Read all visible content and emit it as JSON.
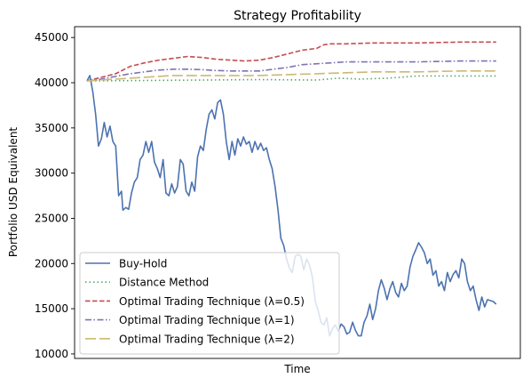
{
  "chart_data": {
    "type": "line",
    "title": "Strategy Profitability",
    "xlabel": "Time",
    "ylabel": "Portfolio USD Equivalent",
    "xlim": [
      0,
      300
    ],
    "ylim": [
      9500,
      46200
    ],
    "yticks": [
      10000,
      15000,
      20000,
      25000,
      30000,
      35000,
      40000,
      45000
    ],
    "ytick_labels": [
      "10000",
      "15000",
      "20000",
      "25000",
      "30000",
      "35000",
      "40000",
      "45000"
    ],
    "x_tick_labels_visible": false,
    "grid": false,
    "legend_position": "lower-left",
    "series": [
      {
        "name": "Buy-Hold",
        "color": "#4c72b0",
        "style": "solid",
        "points": [
          [
            0,
            40200
          ],
          [
            2,
            40800
          ],
          [
            4,
            39000
          ],
          [
            6,
            36500
          ],
          [
            8,
            33000
          ],
          [
            10,
            33800
          ],
          [
            12,
            35600
          ],
          [
            14,
            34000
          ],
          [
            16,
            35200
          ],
          [
            18,
            33500
          ],
          [
            20,
            33000
          ],
          [
            22,
            27500
          ],
          [
            24,
            28000
          ],
          [
            25,
            25900
          ],
          [
            27,
            26200
          ],
          [
            29,
            26000
          ],
          [
            31,
            27800
          ],
          [
            33,
            29000
          ],
          [
            35,
            29500
          ],
          [
            37,
            31500
          ],
          [
            39,
            32000
          ],
          [
            41,
            33500
          ],
          [
            43,
            32300
          ],
          [
            45,
            33500
          ],
          [
            47,
            31200
          ],
          [
            49,
            30500
          ],
          [
            51,
            29500
          ],
          [
            53,
            31500
          ],
          [
            55,
            27800
          ],
          [
            57,
            27500
          ],
          [
            59,
            28800
          ],
          [
            61,
            27800
          ],
          [
            63,
            28500
          ],
          [
            65,
            31500
          ],
          [
            67,
            31000
          ],
          [
            69,
            28000
          ],
          [
            71,
            27500
          ],
          [
            73,
            29000
          ],
          [
            75,
            28000
          ],
          [
            77,
            31800
          ],
          [
            79,
            33000
          ],
          [
            81,
            32500
          ],
          [
            83,
            34800
          ],
          [
            85,
            36500
          ],
          [
            87,
            37000
          ],
          [
            89,
            36000
          ],
          [
            91,
            37800
          ],
          [
            93,
            38100
          ],
          [
            95,
            36500
          ],
          [
            97,
            33500
          ],
          [
            99,
            31500
          ],
          [
            101,
            33500
          ],
          [
            103,
            32000
          ],
          [
            105,
            33800
          ],
          [
            107,
            33000
          ],
          [
            109,
            34000
          ],
          [
            111,
            33200
          ],
          [
            113,
            33500
          ],
          [
            115,
            32300
          ],
          [
            117,
            33500
          ],
          [
            119,
            32600
          ],
          [
            121,
            33300
          ],
          [
            123,
            32500
          ],
          [
            125,
            32800
          ],
          [
            127,
            31500
          ],
          [
            129,
            30500
          ],
          [
            131,
            28500
          ],
          [
            133,
            26000
          ],
          [
            135,
            22800
          ],
          [
            137,
            22000
          ],
          [
            139,
            20500
          ],
          [
            141,
            19500
          ],
          [
            143,
            19000
          ],
          [
            145,
            20800
          ],
          [
            147,
            21000
          ],
          [
            149,
            20800
          ],
          [
            151,
            19300
          ],
          [
            153,
            20500
          ],
          [
            155,
            19800
          ],
          [
            157,
            18500
          ],
          [
            159,
            15800
          ],
          [
            161,
            14800
          ],
          [
            163,
            13500
          ],
          [
            165,
            13200
          ],
          [
            167,
            14000
          ],
          [
            169,
            12000
          ],
          [
            171,
            12800
          ],
          [
            173,
            13200
          ],
          [
            175,
            12500
          ],
          [
            177,
            13300
          ],
          [
            179,
            13000
          ],
          [
            181,
            12200
          ],
          [
            183,
            12400
          ],
          [
            185,
            13500
          ],
          [
            187,
            12600
          ],
          [
            189,
            12000
          ],
          [
            191,
            12000
          ],
          [
            193,
            13500
          ],
          [
            195,
            14200
          ],
          [
            197,
            15500
          ],
          [
            199,
            13800
          ],
          [
            201,
            15000
          ],
          [
            203,
            17000
          ],
          [
            205,
            18200
          ],
          [
            207,
            17300
          ],
          [
            209,
            16000
          ],
          [
            211,
            17200
          ],
          [
            213,
            18000
          ],
          [
            215,
            16800
          ],
          [
            217,
            16300
          ],
          [
            219,
            17800
          ],
          [
            221,
            17000
          ],
          [
            223,
            17500
          ],
          [
            225,
            19600
          ],
          [
            227,
            20800
          ],
          [
            229,
            21500
          ],
          [
            231,
            22300
          ],
          [
            233,
            21800
          ],
          [
            235,
            21200
          ],
          [
            237,
            20000
          ],
          [
            239,
            20500
          ],
          [
            241,
            18700
          ],
          [
            243,
            19200
          ],
          [
            245,
            17500
          ],
          [
            247,
            18000
          ],
          [
            249,
            17000
          ],
          [
            251,
            19000
          ],
          [
            253,
            18000
          ],
          [
            255,
            18800
          ],
          [
            257,
            19200
          ],
          [
            259,
            18400
          ],
          [
            261,
            20500
          ],
          [
            263,
            20000
          ],
          [
            265,
            18000
          ],
          [
            267,
            17000
          ],
          [
            269,
            17500
          ],
          [
            271,
            16000
          ],
          [
            273,
            14800
          ],
          [
            275,
            16300
          ],
          [
            277,
            15200
          ],
          [
            279,
            16000
          ],
          [
            281,
            15900
          ],
          [
            283,
            15800
          ],
          [
            285,
            15500
          ]
        ]
      },
      {
        "name": "Distance Method",
        "color": "#55a868",
        "style": "dotted",
        "points": [
          [
            0,
            40200
          ],
          [
            40,
            40250
          ],
          [
            80,
            40300
          ],
          [
            120,
            40350
          ],
          [
            160,
            40300
          ],
          [
            175,
            40500
          ],
          [
            190,
            40400
          ],
          [
            210,
            40500
          ],
          [
            230,
            40750
          ],
          [
            260,
            40750
          ],
          [
            285,
            40750
          ]
        ]
      },
      {
        "name": "Optimal Trading Technique (λ=0.5)",
        "color": "#c44e52",
        "style": "dashed",
        "points": [
          [
            0,
            40200
          ],
          [
            10,
            40600
          ],
          [
            20,
            41000
          ],
          [
            30,
            41800
          ],
          [
            40,
            42200
          ],
          [
            50,
            42500
          ],
          [
            60,
            42700
          ],
          [
            70,
            42900
          ],
          [
            80,
            42800
          ],
          [
            90,
            42600
          ],
          [
            100,
            42500
          ],
          [
            110,
            42400
          ],
          [
            120,
            42500
          ],
          [
            130,
            42800
          ],
          [
            140,
            43200
          ],
          [
            150,
            43600
          ],
          [
            160,
            43800
          ],
          [
            165,
            44200
          ],
          [
            170,
            44300
          ],
          [
            180,
            44300
          ],
          [
            200,
            44400
          ],
          [
            230,
            44400
          ],
          [
            260,
            44500
          ],
          [
            285,
            44500
          ]
        ]
      },
      {
        "name": "Optimal Trading Technique (λ=1)",
        "color": "#8172b2",
        "style": "dashdot",
        "points": [
          [
            0,
            40200
          ],
          [
            10,
            40400
          ],
          [
            20,
            40700
          ],
          [
            30,
            41000
          ],
          [
            40,
            41200
          ],
          [
            50,
            41400
          ],
          [
            60,
            41500
          ],
          [
            70,
            41500
          ],
          [
            80,
            41450
          ],
          [
            90,
            41350
          ],
          [
            100,
            41300
          ],
          [
            110,
            41300
          ],
          [
            120,
            41300
          ],
          [
            130,
            41500
          ],
          [
            140,
            41700
          ],
          [
            150,
            42000
          ],
          [
            160,
            42100
          ],
          [
            170,
            42200
          ],
          [
            180,
            42300
          ],
          [
            200,
            42300
          ],
          [
            230,
            42300
          ],
          [
            260,
            42400
          ],
          [
            285,
            42400
          ]
        ]
      },
      {
        "name": "Optimal Trading Technique (λ=2)",
        "color": "#ccb974",
        "style": "longdash",
        "points": [
          [
            0,
            40200
          ],
          [
            20,
            40400
          ],
          [
            40,
            40600
          ],
          [
            60,
            40800
          ],
          [
            80,
            40800
          ],
          [
            100,
            40800
          ],
          [
            120,
            40800
          ],
          [
            140,
            40900
          ],
          [
            160,
            41000
          ],
          [
            180,
            41100
          ],
          [
            200,
            41200
          ],
          [
            230,
            41200
          ],
          [
            260,
            41300
          ],
          [
            285,
            41300
          ]
        ]
      }
    ]
  }
}
